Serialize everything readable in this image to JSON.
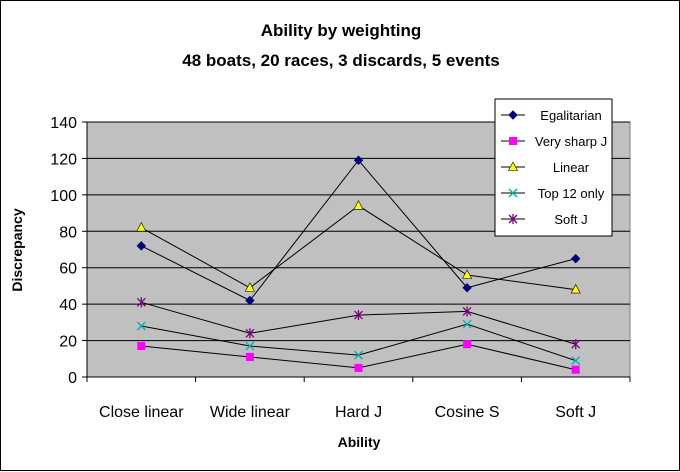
{
  "chart_data": {
    "type": "line",
    "title": "Ability by weighting",
    "subtitle": "48 boats, 20 races, 3 discards, 5 events",
    "xlabel": "Ability",
    "ylabel": "Discrepancy",
    "categories": [
      "Close linear",
      "Wide linear",
      "Hard J",
      "Cosine S",
      "Soft J"
    ],
    "ylim": [
      0,
      140
    ],
    "yticks": [
      0,
      20,
      40,
      60,
      80,
      100,
      120,
      140
    ],
    "grid": true,
    "legend": "top-right",
    "plot_background": "#c0c0c0",
    "series": [
      {
        "name": "Egalitarian",
        "marker": "diamond",
        "color": "#000080",
        "values": [
          72,
          42,
          119,
          49,
          65
        ]
      },
      {
        "name": "Very sharp J",
        "marker": "square",
        "color": "#ff00ff",
        "values": [
          17,
          11,
          5,
          18,
          4
        ]
      },
      {
        "name": "Linear",
        "marker": "triangle",
        "color": "#ffff00",
        "values": [
          82,
          49,
          94,
          56,
          48
        ]
      },
      {
        "name": "Top 12 only",
        "marker": "x",
        "color": "#00b0b0",
        "values": [
          28,
          17,
          12,
          29,
          9
        ]
      },
      {
        "name": "Soft J",
        "marker": "star",
        "color": "#800080",
        "values": [
          41,
          24,
          34,
          36,
          18
        ]
      }
    ]
  }
}
